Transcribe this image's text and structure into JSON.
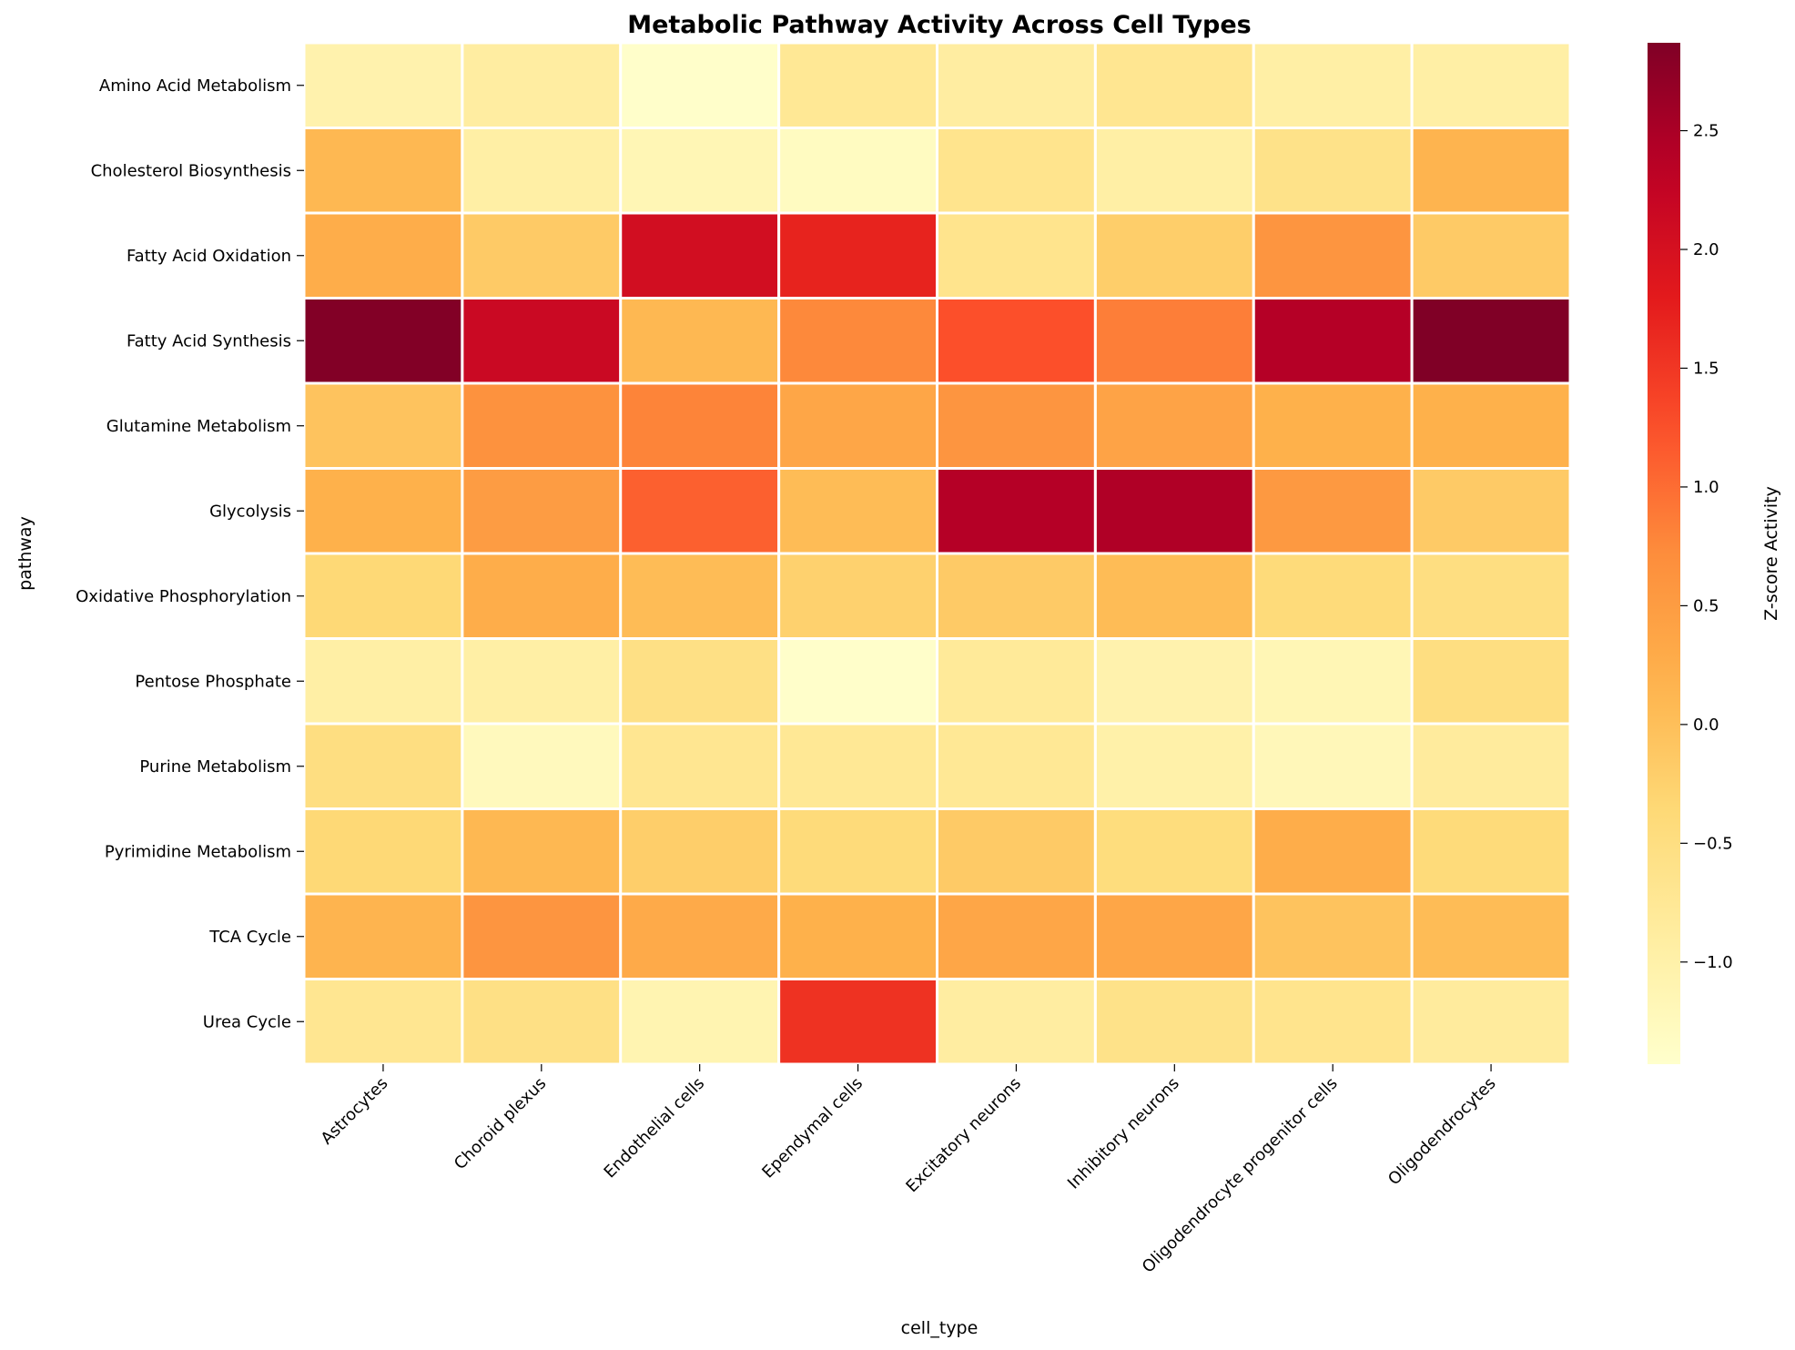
{
  "chart_data": {
    "type": "heatmap",
    "title": "Metabolic Pathway Activity Across Cell Types",
    "xlabel": "cell_type",
    "ylabel": "pathway",
    "colorbar_label": "Z-score Activity",
    "colormap": "YlOrRd",
    "vmin": -1.43,
    "vmax": 2.87,
    "colorbar_ticks": [
      "2.5",
      "2.0",
      "1.5",
      "1.0",
      "0.5",
      "0.0",
      "−0.5",
      "−1.0"
    ],
    "colorbar_tick_values": [
      2.5,
      2.0,
      1.5,
      1.0,
      0.5,
      0.0,
      -0.5,
      -1.0
    ],
    "columns": [
      "Astrocytes",
      "Choroid plexus",
      "Endothelial cells",
      "Ependymal cells",
      "Excitatory neurons",
      "Inhibitory neurons",
      "Oligodendrocyte progenitor cells",
      "Oligodendrocytes"
    ],
    "rows": [
      "Amino Acid Metabolism",
      "Cholesterol Biosynthesis",
      "Fatty Acid Oxidation",
      "Fatty Acid Synthesis",
      "Glutamine Metabolism",
      "Glycolysis",
      "Oxidative Phosphorylation",
      "Pentose Phosphate",
      "Purine Metabolism",
      "Pyrimidine Metabolism",
      "TCA Cycle",
      "Urea Cycle"
    ],
    "values": [
      [
        -1.05,
        -0.9,
        -1.4,
        -0.75,
        -0.9,
        -0.7,
        -0.95,
        -0.95
      ],
      [
        0.1,
        -0.95,
        -1.15,
        -1.3,
        -0.65,
        -0.95,
        -0.6,
        0.15
      ],
      [
        0.25,
        -0.15,
        2.05,
        1.7,
        -0.65,
        -0.2,
        0.6,
        -0.15
      ],
      [
        2.85,
        2.15,
        0.1,
        0.75,
        1.25,
        0.85,
        2.4,
        2.87
      ],
      [
        -0.05,
        0.65,
        0.8,
        0.35,
        0.6,
        0.4,
        0.2,
        0.2
      ],
      [
        0.2,
        0.5,
        1.1,
        0.05,
        2.4,
        2.45,
        0.55,
        -0.15
      ],
      [
        -0.35,
        0.25,
        0.05,
        -0.25,
        -0.15,
        0.05,
        -0.4,
        -0.5
      ],
      [
        -0.95,
        -0.95,
        -0.55,
        -1.4,
        -0.8,
        -1.05,
        -1.15,
        -0.5
      ],
      [
        -0.5,
        -1.25,
        -0.7,
        -0.75,
        -0.75,
        -1.0,
        -1.2,
        -0.85
      ],
      [
        -0.35,
        0.1,
        -0.2,
        -0.4,
        -0.15,
        -0.45,
        0.25,
        -0.4
      ],
      [
        0.15,
        0.6,
        0.3,
        0.2,
        0.35,
        0.35,
        -0.05,
        0.05
      ],
      [
        -0.7,
        -0.55,
        -1.1,
        1.55,
        -0.9,
        -0.6,
        -0.65,
        -0.85
      ]
    ]
  }
}
